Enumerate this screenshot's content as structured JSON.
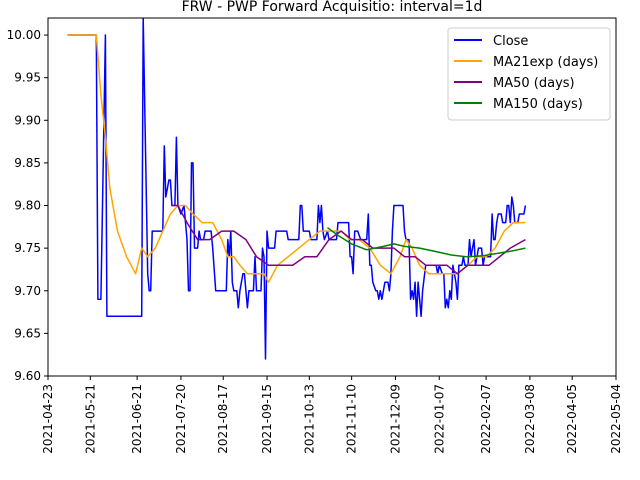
{
  "chart_data": {
    "type": "line",
    "title": "FRW - PWP Forward Acquisitio: interval=1d",
    "xlabel": "",
    "ylabel": "",
    "xlim": [
      "2021-04-23",
      "2022-05-04"
    ],
    "ylim": [
      9.6,
      10.02
    ],
    "x_ticks": [
      "2021-04-23",
      "2021-05-21",
      "2021-06-21",
      "2021-07-20",
      "2021-08-17",
      "2021-09-15",
      "2021-10-13",
      "2021-11-10",
      "2021-12-09",
      "2022-01-07",
      "2022-02-07",
      "2022-03-08",
      "2022-04-05",
      "2022-05-04"
    ],
    "y_ticks": [
      "9.60",
      "9.65",
      "9.70",
      "9.75",
      "9.80",
      "9.85",
      "9.90",
      "9.95",
      "10.00"
    ],
    "grid": false,
    "legend_position": "top-right",
    "series": [
      {
        "name": "Close",
        "color": "#0000ff",
        "points": [
          [
            "2021-05-06",
            10.0
          ],
          [
            "2021-05-25",
            10.0
          ],
          [
            "2021-05-26",
            9.69
          ],
          [
            "2021-05-28",
            9.69
          ],
          [
            "2021-05-31",
            10.0
          ],
          [
            "2021-06-01",
            9.67
          ],
          [
            "2021-06-24",
            9.67
          ],
          [
            "2021-06-25",
            10.02
          ],
          [
            "2021-06-28",
            9.72
          ],
          [
            "2021-06-29",
            9.7
          ],
          [
            "2021-06-30",
            9.7
          ],
          [
            "2021-07-01",
            9.77
          ],
          [
            "2021-07-08",
            9.77
          ],
          [
            "2021-07-09",
            9.87
          ],
          [
            "2021-07-10",
            9.81
          ],
          [
            "2021-07-12",
            9.83
          ],
          [
            "2021-07-13",
            9.83
          ],
          [
            "2021-07-14",
            9.8
          ],
          [
            "2021-07-16",
            9.8
          ],
          [
            "2021-07-17",
            9.88
          ],
          [
            "2021-07-18",
            9.8
          ],
          [
            "2021-07-20",
            9.79
          ],
          [
            "2021-07-22",
            9.8
          ],
          [
            "2021-07-24",
            9.76
          ],
          [
            "2021-07-25",
            9.7
          ],
          [
            "2021-07-26",
            9.7
          ],
          [
            "2021-07-27",
            9.85
          ],
          [
            "2021-07-28",
            9.85
          ],
          [
            "2021-07-29",
            9.75
          ],
          [
            "2021-07-31",
            9.75
          ],
          [
            "2021-08-01",
            9.77
          ],
          [
            "2021-08-02",
            9.76
          ],
          [
            "2021-08-04",
            9.76
          ],
          [
            "2021-08-05",
            9.77
          ],
          [
            "2021-08-09",
            9.77
          ],
          [
            "2021-08-10",
            9.75
          ],
          [
            "2021-08-12",
            9.7
          ],
          [
            "2021-08-19",
            9.7
          ],
          [
            "2021-08-20",
            9.76
          ],
          [
            "2021-08-21",
            9.74
          ],
          [
            "2021-08-22",
            9.77
          ],
          [
            "2021-08-23",
            9.71
          ],
          [
            "2021-08-24",
            9.7
          ],
          [
            "2021-08-26",
            9.7
          ],
          [
            "2021-08-27",
            9.68
          ],
          [
            "2021-08-28",
            9.7
          ],
          [
            "2021-08-30",
            9.72
          ],
          [
            "2021-08-31",
            9.72
          ],
          [
            "2021-09-01",
            9.7
          ],
          [
            "2021-09-02",
            9.68
          ],
          [
            "2021-09-03",
            9.7
          ],
          [
            "2021-09-06",
            9.7
          ],
          [
            "2021-09-07",
            9.74
          ],
          [
            "2021-09-08",
            9.7
          ],
          [
            "2021-09-11",
            9.7
          ],
          [
            "2021-09-12",
            9.75
          ],
          [
            "2021-09-13",
            9.74
          ],
          [
            "2021-09-14",
            9.62
          ],
          [
            "2021-09-15",
            9.77
          ],
          [
            "2021-09-16",
            9.75
          ],
          [
            "2021-09-20",
            9.75
          ],
          [
            "2021-09-21",
            9.77
          ],
          [
            "2021-09-28",
            9.77
          ],
          [
            "2021-09-29",
            9.76
          ],
          [
            "2021-10-06",
            9.76
          ],
          [
            "2021-10-07",
            9.8
          ],
          [
            "2021-10-08",
            9.8
          ],
          [
            "2021-10-09",
            9.77
          ],
          [
            "2021-10-13",
            9.77
          ],
          [
            "2021-10-14",
            9.76
          ],
          [
            "2021-10-18",
            9.76
          ],
          [
            "2021-10-19",
            9.8
          ],
          [
            "2021-10-20",
            9.78
          ],
          [
            "2021-10-21",
            9.8
          ],
          [
            "2021-10-22",
            9.77
          ],
          [
            "2021-10-23",
            9.76
          ],
          [
            "2021-10-25",
            9.77
          ],
          [
            "2021-10-26",
            9.76
          ],
          [
            "2021-10-31",
            9.76
          ],
          [
            "2021-11-01",
            9.78
          ],
          [
            "2021-11-08",
            9.78
          ],
          [
            "2021-11-09",
            9.74
          ],
          [
            "2021-11-10",
            9.74
          ],
          [
            "2021-11-11",
            9.72
          ],
          [
            "2021-11-12",
            9.77
          ],
          [
            "2021-11-14",
            9.77
          ],
          [
            "2021-11-16",
            9.76
          ],
          [
            "2021-11-20",
            9.76
          ],
          [
            "2021-11-21",
            9.79
          ],
          [
            "2021-11-22",
            9.73
          ],
          [
            "2021-11-23",
            9.73
          ],
          [
            "2021-11-24",
            9.71
          ],
          [
            "2021-11-26",
            9.7
          ],
          [
            "2021-11-27",
            9.7
          ],
          [
            "2021-11-28",
            9.69
          ],
          [
            "2021-11-29",
            9.7
          ],
          [
            "2021-11-30",
            9.69
          ],
          [
            "2021-12-01",
            9.7
          ],
          [
            "2021-12-02",
            9.71
          ],
          [
            "2021-12-04",
            9.71
          ],
          [
            "2021-12-05",
            9.7
          ],
          [
            "2021-12-06",
            9.72
          ],
          [
            "2021-12-07",
            9.77
          ],
          [
            "2021-12-08",
            9.8
          ],
          [
            "2021-12-14",
            9.8
          ],
          [
            "2021-12-15",
            9.77
          ],
          [
            "2021-12-16",
            9.76
          ],
          [
            "2021-12-18",
            9.76
          ],
          [
            "2021-12-19",
            9.69
          ],
          [
            "2021-12-20",
            9.7
          ],
          [
            "2021-12-21",
            9.69
          ],
          [
            "2021-12-22",
            9.71
          ],
          [
            "2021-12-23",
            9.67
          ],
          [
            "2021-12-24",
            9.71
          ],
          [
            "2021-12-25",
            9.69
          ],
          [
            "2021-12-26",
            9.67
          ],
          [
            "2021-12-27",
            9.7
          ],
          [
            "2021-12-29",
            9.73
          ],
          [
            "2022-01-05",
            9.73
          ],
          [
            "2022-01-06",
            9.72
          ],
          [
            "2022-01-07",
            9.73
          ],
          [
            "2022-01-09",
            9.72
          ],
          [
            "2022-01-10",
            9.72
          ],
          [
            "2022-01-11",
            9.68
          ],
          [
            "2022-01-12",
            9.69
          ],
          [
            "2022-01-13",
            9.68
          ],
          [
            "2022-01-14",
            9.7
          ],
          [
            "2022-01-15",
            9.69
          ],
          [
            "2022-01-16",
            9.73
          ],
          [
            "2022-01-17",
            9.72
          ],
          [
            "2022-01-18",
            9.71
          ],
          [
            "2022-01-19",
            9.69
          ],
          [
            "2022-01-20",
            9.73
          ],
          [
            "2022-01-22",
            9.73
          ],
          [
            "2022-01-23",
            9.74
          ],
          [
            "2022-01-24",
            9.73
          ],
          [
            "2022-01-26",
            9.73
          ],
          [
            "2022-01-27",
            9.76
          ],
          [
            "2022-01-28",
            9.74
          ],
          [
            "2022-01-29",
            9.75
          ],
          [
            "2022-01-30",
            9.76
          ],
          [
            "2022-01-31",
            9.73
          ],
          [
            "2022-02-01",
            9.74
          ],
          [
            "2022-02-02",
            9.75
          ],
          [
            "2022-02-04",
            9.75
          ],
          [
            "2022-02-05",
            9.73
          ],
          [
            "2022-02-06",
            9.74
          ],
          [
            "2022-02-07",
            9.74
          ],
          [
            "2022-02-10",
            9.74
          ],
          [
            "2022-02-11",
            9.79
          ],
          [
            "2022-02-12",
            9.76
          ],
          [
            "2022-02-13",
            9.76
          ],
          [
            "2022-02-14",
            9.78
          ],
          [
            "2022-02-15",
            9.79
          ],
          [
            "2022-02-17",
            9.79
          ],
          [
            "2022-02-18",
            9.78
          ],
          [
            "2022-02-20",
            9.78
          ],
          [
            "2022-02-21",
            9.8
          ],
          [
            "2022-02-22",
            9.8
          ],
          [
            "2022-02-23",
            9.78
          ],
          [
            "2022-02-24",
            9.81
          ],
          [
            "2022-02-25",
            9.8
          ],
          [
            "2022-02-26",
            9.78
          ],
          [
            "2022-02-28",
            9.78
          ],
          [
            "2022-03-01",
            9.79
          ],
          [
            "2022-03-04",
            9.79
          ],
          [
            "2022-03-05",
            9.8
          ]
        ]
      },
      {
        "name": "MA21exp (days)",
        "color": "#ffa500",
        "points": [
          [
            "2021-05-06",
            10.0
          ],
          [
            "2021-05-25",
            10.0
          ],
          [
            "2021-05-28",
            9.93
          ],
          [
            "2021-05-31",
            9.88
          ],
          [
            "2021-06-03",
            9.82
          ],
          [
            "2021-06-08",
            9.77
          ],
          [
            "2021-06-14",
            9.74
          ],
          [
            "2021-06-20",
            9.72
          ],
          [
            "2021-06-24",
            9.75
          ],
          [
            "2021-06-28",
            9.74
          ],
          [
            "2021-07-03",
            9.75
          ],
          [
            "2021-07-08",
            9.77
          ],
          [
            "2021-07-13",
            9.79
          ],
          [
            "2021-07-18",
            9.8
          ],
          [
            "2021-07-23",
            9.8
          ],
          [
            "2021-07-28",
            9.79
          ],
          [
            "2021-08-03",
            9.78
          ],
          [
            "2021-08-10",
            9.78
          ],
          [
            "2021-08-16",
            9.76
          ],
          [
            "2021-08-20",
            9.74
          ],
          [
            "2021-08-24",
            9.74
          ],
          [
            "2021-08-28",
            9.73
          ],
          [
            "2021-09-02",
            9.72
          ],
          [
            "2021-09-08",
            9.72
          ],
          [
            "2021-09-13",
            9.72
          ],
          [
            "2021-09-16",
            9.71
          ],
          [
            "2021-09-22",
            9.73
          ],
          [
            "2021-09-29",
            9.74
          ],
          [
            "2021-10-06",
            9.75
          ],
          [
            "2021-10-13",
            9.76
          ],
          [
            "2021-10-20",
            9.77
          ],
          [
            "2021-10-27",
            9.77
          ],
          [
            "2021-11-03",
            9.77
          ],
          [
            "2021-11-09",
            9.76
          ],
          [
            "2021-11-15",
            9.76
          ],
          [
            "2021-11-22",
            9.75
          ],
          [
            "2021-11-29",
            9.73
          ],
          [
            "2021-12-06",
            9.72
          ],
          [
            "2021-12-12",
            9.74
          ],
          [
            "2021-12-16",
            9.76
          ],
          [
            "2021-12-20",
            9.75
          ],
          [
            "2021-12-25",
            9.73
          ],
          [
            "2021-12-31",
            9.72
          ],
          [
            "2022-01-07",
            9.72
          ],
          [
            "2022-01-13",
            9.72
          ],
          [
            "2022-01-19",
            9.72
          ],
          [
            "2022-01-26",
            9.73
          ],
          [
            "2022-02-01",
            9.74
          ],
          [
            "2022-02-07",
            9.74
          ],
          [
            "2022-02-13",
            9.75
          ],
          [
            "2022-02-19",
            9.77
          ],
          [
            "2022-02-25",
            9.78
          ],
          [
            "2022-03-05",
            9.78
          ]
        ]
      },
      {
        "name": "MA50 (days)",
        "color": "#800080",
        "points": [
          [
            "2021-07-14",
            9.8
          ],
          [
            "2021-07-18",
            9.8
          ],
          [
            "2021-07-24",
            9.78
          ],
          [
            "2021-07-31",
            9.76
          ],
          [
            "2021-08-08",
            9.76
          ],
          [
            "2021-08-16",
            9.77
          ],
          [
            "2021-08-24",
            9.77
          ],
          [
            "2021-09-01",
            9.76
          ],
          [
            "2021-09-08",
            9.74
          ],
          [
            "2021-09-16",
            9.73
          ],
          [
            "2021-09-24",
            9.73
          ],
          [
            "2021-10-02",
            9.73
          ],
          [
            "2021-10-10",
            9.74
          ],
          [
            "2021-10-18",
            9.74
          ],
          [
            "2021-10-26",
            9.76
          ],
          [
            "2021-11-03",
            9.77
          ],
          [
            "2021-11-10",
            9.76
          ],
          [
            "2021-11-17",
            9.76
          ],
          [
            "2021-11-24",
            9.75
          ],
          [
            "2021-12-01",
            9.75
          ],
          [
            "2021-12-08",
            9.75
          ],
          [
            "2021-12-15",
            9.74
          ],
          [
            "2021-12-22",
            9.74
          ],
          [
            "2021-12-29",
            9.73
          ],
          [
            "2022-01-05",
            9.73
          ],
          [
            "2022-01-12",
            9.73
          ],
          [
            "2022-01-19",
            9.72
          ],
          [
            "2022-01-26",
            9.73
          ],
          [
            "2022-02-02",
            9.73
          ],
          [
            "2022-02-09",
            9.73
          ],
          [
            "2022-02-16",
            9.74
          ],
          [
            "2022-02-23",
            9.75
          ],
          [
            "2022-03-05",
            9.76
          ]
        ]
      },
      {
        "name": "MA150 (days)",
        "color": "#008000",
        "points": [
          [
            "2021-10-25",
            9.774
          ],
          [
            "2021-11-01",
            9.765
          ],
          [
            "2021-11-10",
            9.755
          ],
          [
            "2021-11-20",
            9.748
          ],
          [
            "2021-12-01",
            9.752
          ],
          [
            "2021-12-08",
            9.755
          ],
          [
            "2021-12-15",
            9.752
          ],
          [
            "2021-12-25",
            9.75
          ],
          [
            "2022-01-05",
            9.746
          ],
          [
            "2022-01-15",
            9.742
          ],
          [
            "2022-01-25",
            9.74
          ],
          [
            "2022-02-05",
            9.741
          ],
          [
            "2022-02-15",
            9.744
          ],
          [
            "2022-02-25",
            9.747
          ],
          [
            "2022-03-05",
            9.75
          ]
        ]
      }
    ]
  }
}
